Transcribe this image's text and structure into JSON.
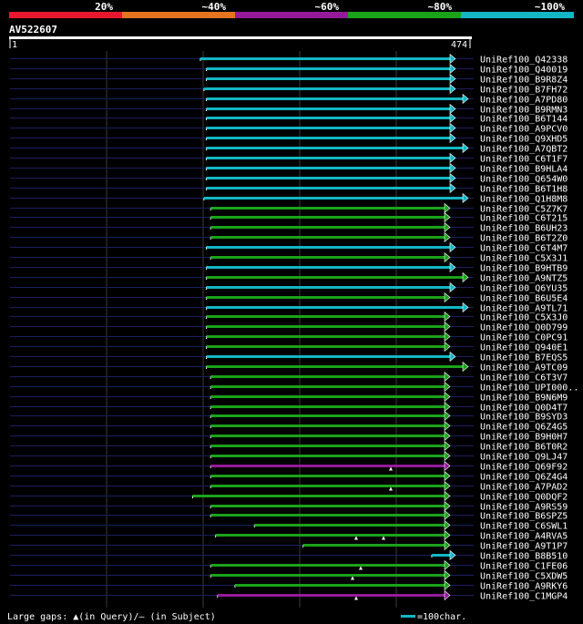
{
  "chart_data": {
    "type": "alignment-overview",
    "query_name": "AV522607",
    "query_start": "1",
    "query_end": "474",
    "query_length": 474,
    "identity_scale": [
      {
        "label": "20%",
        "color": "#e8172f"
      },
      {
        "label": "~40%",
        "color": "#e4741f"
      },
      {
        "label": "~60%",
        "color": "#951a9b"
      },
      {
        "label": "~80%",
        "color": "#1ba21b"
      },
      {
        "label": "~100%",
        "color": "#13b6c3"
      }
    ],
    "footer_gaps": "Large gaps: ▲(in Query)/– (in Subject)",
    "footer_scale": "=100char.",
    "colors": {
      "cyan": "#13b6c3",
      "green": "#1ba21b",
      "purple": "#951a9b",
      "faint": "#1a1f5e"
    },
    "hits": [
      {
        "name": "UniRef100_Q42338",
        "start": 1,
        "end": 474,
        "left_ext": 380,
        "right_ext": 0,
        "color": "cyan",
        "gaps": []
      },
      {
        "name": "UniRef100_Q40019",
        "start": 1,
        "end": 474,
        "left_ext": 393,
        "right_ext": 0,
        "color": "cyan",
        "gaps": []
      },
      {
        "name": "UniRef100_B9R8Z4",
        "start": 1,
        "end": 474,
        "left_ext": 393,
        "right_ext": 0,
        "color": "cyan",
        "gaps": []
      },
      {
        "name": "UniRef100_B7FH72",
        "start": 1,
        "end": 474,
        "left_ext": 388,
        "right_ext": 0,
        "color": "cyan",
        "gaps": []
      },
      {
        "name": "UniRef100_A7PD80",
        "start": 1,
        "end": 474,
        "left_ext": 393,
        "right_ext": 17,
        "color": "cyan",
        "gaps": []
      },
      {
        "name": "UniRef100_B9RMN3",
        "start": 1,
        "end": 474,
        "left_ext": 393,
        "right_ext": 0,
        "color": "cyan",
        "gaps": []
      },
      {
        "name": "UniRef100_B6T144",
        "start": 1,
        "end": 474,
        "left_ext": 393,
        "right_ext": 0,
        "color": "cyan",
        "gaps": []
      },
      {
        "name": "UniRef100_A9PCV0",
        "start": 1,
        "end": 474,
        "left_ext": 393,
        "right_ext": 0,
        "color": "cyan",
        "gaps": []
      },
      {
        "name": "UniRef100_Q9XHD5",
        "start": 1,
        "end": 474,
        "left_ext": 393,
        "right_ext": 0,
        "color": "cyan",
        "gaps": []
      },
      {
        "name": "UniRef100_A7QBT2",
        "start": 1,
        "end": 474,
        "left_ext": 393,
        "right_ext": 17,
        "color": "cyan",
        "gaps": []
      },
      {
        "name": "UniRef100_C6T1F7",
        "start": 1,
        "end": 474,
        "left_ext": 393,
        "right_ext": 0,
        "color": "cyan",
        "gaps": []
      },
      {
        "name": "UniRef100_B9HLA4",
        "start": 1,
        "end": 474,
        "left_ext": 393,
        "right_ext": 0,
        "color": "cyan",
        "gaps": []
      },
      {
        "name": "UniRef100_Q654W0",
        "start": 1,
        "end": 474,
        "left_ext": 393,
        "right_ext": 0,
        "color": "cyan",
        "gaps": []
      },
      {
        "name": "UniRef100_B6T1H8",
        "start": 1,
        "end": 474,
        "left_ext": 393,
        "right_ext": 0,
        "color": "cyan",
        "gaps": []
      },
      {
        "name": "UniRef100_Q1H8M8",
        "start": 1,
        "end": 474,
        "left_ext": 388,
        "right_ext": 15,
        "color": "cyan",
        "gaps": []
      },
      {
        "name": "UniRef100_C5Z7K7",
        "start": 5,
        "end": 474,
        "left_ext": 400,
        "right_ext": 0,
        "color": "green",
        "gaps": []
      },
      {
        "name": "UniRef100_C6T215",
        "start": 5,
        "end": 474,
        "left_ext": 400,
        "right_ext": 0,
        "color": "green",
        "gaps": []
      },
      {
        "name": "UniRef100_B6UH23",
        "start": 5,
        "end": 474,
        "left_ext": 400,
        "right_ext": 0,
        "color": "green",
        "gaps": []
      },
      {
        "name": "UniRef100_B6T2Z0",
        "start": 5,
        "end": 474,
        "left_ext": 400,
        "right_ext": 0,
        "color": "green",
        "gaps": []
      },
      {
        "name": "UniRef100_C6T4M7",
        "start": 1,
        "end": 474,
        "left_ext": 393,
        "right_ext": 0,
        "color": "cyan",
        "gaps": []
      },
      {
        "name": "UniRef100_C5X3J1",
        "start": 5,
        "end": 474,
        "left_ext": 400,
        "right_ext": 0,
        "color": "green",
        "gaps": []
      },
      {
        "name": "UniRef100_B9HTB9",
        "start": 1,
        "end": 474,
        "left_ext": 393,
        "right_ext": 0,
        "color": "cyan",
        "gaps": []
      },
      {
        "name": "UniRef100_A9NTZ5",
        "start": 1,
        "end": 474,
        "left_ext": 393,
        "right_ext": 17,
        "color": "green",
        "gaps": []
      },
      {
        "name": "UniRef100_Q6YU35",
        "start": 1,
        "end": 474,
        "left_ext": 393,
        "right_ext": 0,
        "color": "cyan",
        "gaps": []
      },
      {
        "name": "UniRef100_B6U5E4",
        "start": 1,
        "end": 474,
        "left_ext": 393,
        "right_ext": 0,
        "color": "green",
        "gaps": []
      },
      {
        "name": "UniRef100_A9TL71",
        "start": 1,
        "end": 474,
        "left_ext": 393,
        "right_ext": 17,
        "color": "cyan",
        "gaps": []
      },
      {
        "name": "UniRef100_C5X3J0",
        "start": 1,
        "end": 474,
        "left_ext": 393,
        "right_ext": 0,
        "color": "green",
        "gaps": []
      },
      {
        "name": "UniRef100_Q0D799",
        "start": 1,
        "end": 474,
        "left_ext": 393,
        "right_ext": 0,
        "color": "green",
        "gaps": []
      },
      {
        "name": "UniRef100_C0PC91",
        "start": 1,
        "end": 474,
        "left_ext": 393,
        "right_ext": 0,
        "color": "green",
        "gaps": []
      },
      {
        "name": "UniRef100_Q940E1",
        "start": 1,
        "end": 474,
        "left_ext": 393,
        "right_ext": 0,
        "color": "green",
        "gaps": []
      },
      {
        "name": "UniRef100_B7EQS5",
        "start": 1,
        "end": 474,
        "left_ext": 393,
        "right_ext": 0,
        "color": "cyan",
        "gaps": []
      },
      {
        "name": "UniRef100_A9TC09",
        "start": 1,
        "end": 474,
        "left_ext": 393,
        "right_ext": 17,
        "color": "green",
        "gaps": []
      },
      {
        "name": "UniRef100_C6T3V7",
        "start": 5,
        "end": 474,
        "left_ext": 400,
        "right_ext": 0,
        "color": "green",
        "gaps": []
      },
      {
        "name": "UniRef100_UPI000..",
        "start": 5,
        "end": 474,
        "left_ext": 400,
        "right_ext": 0,
        "color": "green",
        "gaps": []
      },
      {
        "name": "UniRef100_B9N6M9",
        "start": 5,
        "end": 474,
        "left_ext": 400,
        "right_ext": 0,
        "color": "green",
        "gaps": []
      },
      {
        "name": "UniRef100_Q0D4T7",
        "start": 5,
        "end": 474,
        "left_ext": 400,
        "right_ext": 0,
        "color": "green",
        "gaps": []
      },
      {
        "name": "UniRef100_B9SYD3",
        "start": 5,
        "end": 474,
        "left_ext": 400,
        "right_ext": 0,
        "color": "green",
        "gaps": []
      },
      {
        "name": "UniRef100_Q6Z4G5",
        "start": 5,
        "end": 474,
        "left_ext": 400,
        "right_ext": 0,
        "color": "green",
        "gaps": []
      },
      {
        "name": "UniRef100_B9H0H7",
        "start": 5,
        "end": 474,
        "left_ext": 400,
        "right_ext": 0,
        "color": "green",
        "gaps": []
      },
      {
        "name": "UniRef100_B6T0R2",
        "start": 5,
        "end": 474,
        "left_ext": 400,
        "right_ext": 0,
        "color": "green",
        "gaps": []
      },
      {
        "name": "UniRef100_Q9LJ47",
        "start": 5,
        "end": 474,
        "left_ext": 400,
        "right_ext": 0,
        "color": "green",
        "gaps": []
      },
      {
        "name": "UniRef100_Q69F92",
        "start": 5,
        "end": 474,
        "left_ext": 400,
        "right_ext": 0,
        "color": "purple",
        "gaps": [
          418
        ]
      },
      {
        "name": "UniRef100_Q6Z4G4",
        "start": 5,
        "end": 474,
        "left_ext": 400,
        "right_ext": 0,
        "color": "green",
        "gaps": []
      },
      {
        "name": "UniRef100_A7PAD2",
        "start": 5,
        "end": 474,
        "left_ext": 400,
        "right_ext": 0,
        "color": "green",
        "gaps": [
          418
        ]
      },
      {
        "name": "UniRef100_Q0DQF2",
        "start": 1,
        "end": 474,
        "left_ext": 363,
        "right_ext": 0,
        "color": "green",
        "gaps": []
      },
      {
        "name": "UniRef100_A9RS59",
        "start": 5,
        "end": 474,
        "left_ext": 400,
        "right_ext": 0,
        "color": "green",
        "gaps": []
      },
      {
        "name": "UniRef100_B6SPZ5",
        "start": 5,
        "end": 474,
        "left_ext": 400,
        "right_ext": 0,
        "color": "green",
        "gaps": []
      },
      {
        "name": "UniRef100_C6SWL1",
        "start": 50,
        "end": 474,
        "left_ext": 400,
        "right_ext": 0,
        "color": "green",
        "gaps": []
      },
      {
        "name": "UniRef100_A4RVA5",
        "start": 10,
        "end": 474,
        "left_ext": 400,
        "right_ext": 0,
        "color": "green",
        "gaps": [
          380,
          410
        ]
      },
      {
        "name": "UniRef100_A9T1P7",
        "start": 100,
        "end": 474,
        "left_ext": 400,
        "right_ext": 0,
        "color": "green",
        "gaps": []
      },
      {
        "name": "UniRef100_B8B510",
        "start": 255,
        "end": 474,
        "left_ext": 400,
        "right_ext": 0,
        "color": "cyan",
        "gaps": []
      },
      {
        "name": "UniRef100_C1FE06",
        "start": 5,
        "end": 474,
        "left_ext": 400,
        "right_ext": 0,
        "color": "green",
        "gaps": [
          385
        ]
      },
      {
        "name": "UniRef100_C5XDW5",
        "start": 5,
        "end": 474,
        "left_ext": 400,
        "right_ext": 0,
        "color": "green",
        "gaps": [
          376
        ]
      },
      {
        "name": "UniRef100_A9RKY6",
        "start": 30,
        "end": 474,
        "left_ext": 400,
        "right_ext": 0,
        "color": "green",
        "gaps": []
      },
      {
        "name": "UniRef100_C1MGP4",
        "start": 12,
        "end": 474,
        "left_ext": 400,
        "right_ext": 0,
        "color": "purple",
        "gaps": [
          380
        ]
      }
    ]
  }
}
